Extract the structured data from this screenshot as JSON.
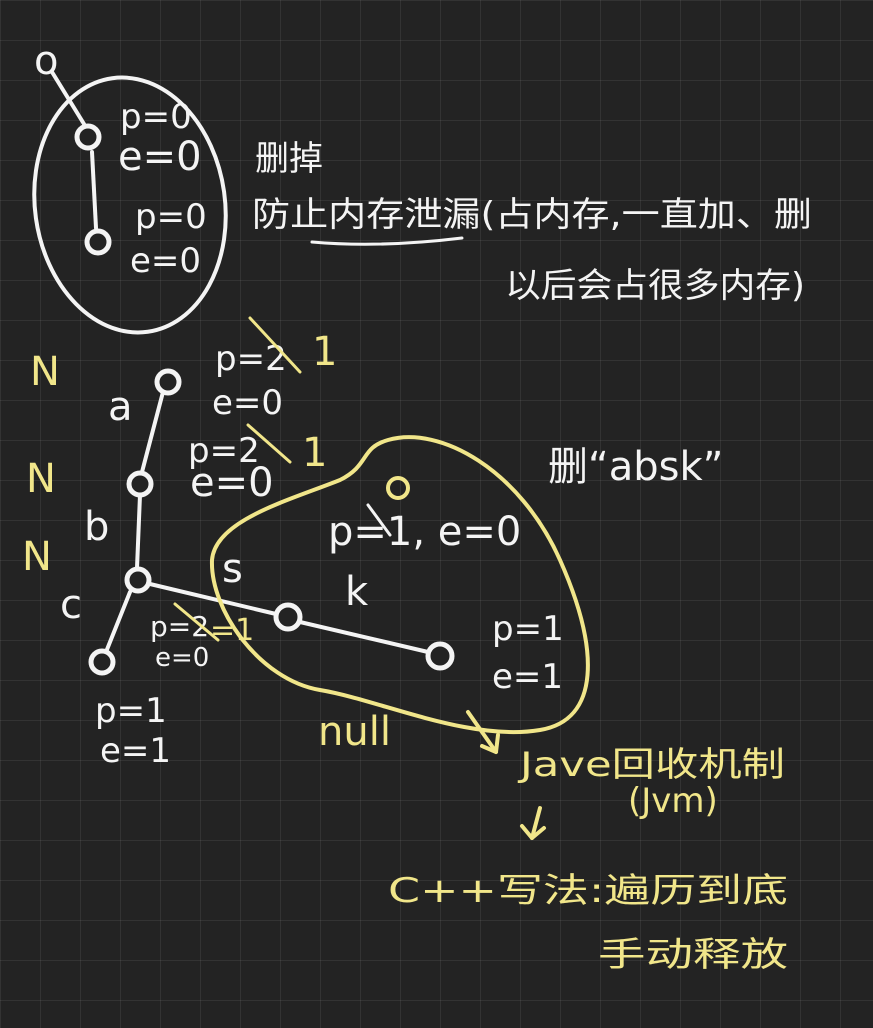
{
  "top_tree": {
    "root_label": "o",
    "node1": {
      "p": "p=0",
      "e": "e=0"
    },
    "node2": {
      "p": "p=0",
      "e": "e=0"
    },
    "note_delete": "删掉",
    "note_line1": "防止内存泄漏(占内存,一直加、删",
    "note_line2": "以后会占很多内存)"
  },
  "main_tree": {
    "n_marks": [
      "N",
      "N",
      "N"
    ],
    "edge_labels": {
      "a": "a",
      "b": "b",
      "c": "c",
      "s": "s",
      "k": "k"
    },
    "node_a": {
      "p_old": "p=2",
      "p_new": "1",
      "e": "e=0"
    },
    "node_b": {
      "p_old": "p=2",
      "p_new": "1",
      "e": "e=0"
    },
    "node_c": {
      "p_old": "p=2",
      "p_new": "=1",
      "e": "e=0"
    },
    "node_cleaf": {
      "p": "p=1",
      "e": "e=1"
    },
    "node_k": {
      "p": "p=1",
      "e": "e=1"
    },
    "region_node": {
      "label": "o",
      "pe": "p=1, e=0"
    },
    "null_label": "null"
  },
  "notes": {
    "delete_title": "删“absk”",
    "java_gc": "Jave回收机制",
    "jvm": "(Jvm)",
    "cpp_line1": "C++写法:遍历到底",
    "cpp_line2": "手动释放"
  },
  "colors": {
    "background": "#232323",
    "ink_white": "#f4f4f4",
    "ink_yellow": "#f1e68a"
  }
}
